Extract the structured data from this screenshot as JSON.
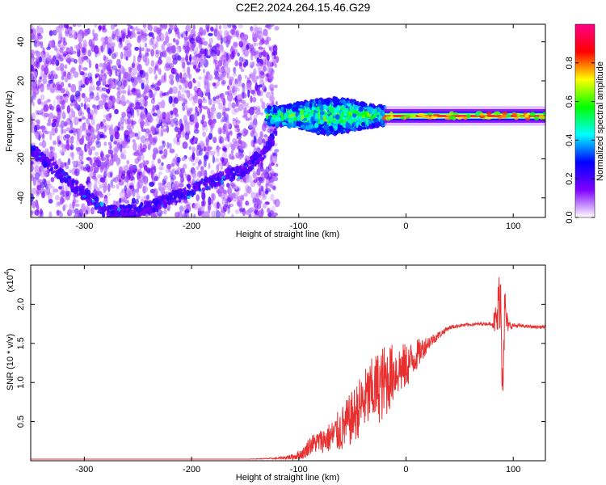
{
  "title": "C2E2.2024.264.15.46.G29",
  "chart_data": [
    {
      "type": "heatmap",
      "title": "C2E2.2024.264.15.46.G29",
      "xlabel": "Height of straight line (km)",
      "ylabel": "Frequency (Hz)",
      "xlim": [
        -350,
        130
      ],
      "ylim": [
        -50,
        49
      ],
      "xticks": [
        -300,
        -200,
        -100,
        0,
        100
      ],
      "yticks": [
        -40,
        -20,
        0,
        20,
        40
      ],
      "colorbar": {
        "label": "Normalized spectral amplitude",
        "range": [
          0,
          1
        ],
        "ticks": [
          "0.0",
          "0.2",
          "0.4",
          "0.6",
          "0.8"
        ],
        "colors": [
          "#ffffff",
          "#7f00ff",
          "#0000ff",
          "#00ffff",
          "#00ff00",
          "#ffff00",
          "#ff0000",
          "#ff0088"
        ]
      },
      "features": [
        {
          "name": "noise region",
          "x_range": [
            -350,
            -120
          ],
          "y_range": [
            -50,
            49
          ],
          "amplitude": 0.1
        },
        {
          "name": "descending arc",
          "points": [
            [
              -350,
              -15
            ],
            [
              -300,
              -38
            ],
            [
              -280,
              -47
            ],
            [
              -250,
              -47
            ],
            [
              -200,
              -36
            ],
            [
              -150,
              -25
            ],
            [
              -130,
              -15
            ],
            [
              -120,
              -5
            ]
          ],
          "amplitude": 0.2
        },
        {
          "name": "scatter band",
          "x_range": [
            -130,
            -20
          ],
          "center": 2,
          "amplitude": 0.45
        },
        {
          "name": "carrier line",
          "x_range": [
            -20,
            130
          ],
          "center": 2,
          "amplitude": 0.95
        }
      ]
    },
    {
      "type": "line",
      "title": "",
      "xlabel": "Height of straight line (km)",
      "ylabel": "SNR (10 * v/v)",
      "y_scale_label": "(x10",
      "y_scale_exp": "4",
      "xlim": [
        -350,
        130
      ],
      "ylim": [
        0,
        2.5
      ],
      "xticks": [
        -300,
        -200,
        -100,
        0,
        100
      ],
      "yticks": [
        0.5,
        1.0,
        1.5,
        2.0
      ],
      "ytick_labels": [
        "0.5",
        "1.0",
        "1.5",
        "2.0"
      ],
      "series": [
        {
          "name": "SNR",
          "color": "#e83030",
          "x": [
            -350,
            -300,
            -250,
            -200,
            -150,
            -120,
            -105,
            -95,
            -90,
            -80,
            -70,
            -60,
            -50,
            -40,
            -30,
            -20,
            -10,
            0,
            10,
            20,
            30,
            40,
            50,
            60,
            70,
            80,
            85,
            88,
            90,
            92,
            95,
            100,
            110,
            120,
            130
          ],
          "y": [
            0.02,
            0.02,
            0.02,
            0.02,
            0.02,
            0.03,
            0.05,
            0.1,
            0.2,
            0.25,
            0.3,
            0.4,
            0.55,
            0.75,
            0.9,
            1.0,
            1.15,
            1.2,
            1.35,
            1.5,
            1.6,
            1.7,
            1.73,
            1.74,
            1.75,
            1.75,
            1.8,
            2.2,
            1.1,
            1.9,
            1.72,
            1.73,
            1.72,
            1.71,
            1.71
          ],
          "noise": [
            0,
            0,
            0,
            0,
            0,
            0.01,
            0.04,
            0.08,
            0.12,
            0.15,
            0.2,
            0.3,
            0.35,
            0.4,
            0.45,
            0.5,
            0.35,
            0.3,
            0.2,
            0.1,
            0.05,
            0.03,
            0.02,
            0.02,
            0.02,
            0.02,
            0.3,
            0.5,
            0.5,
            0.4,
            0.08,
            0.03,
            0.02,
            0.02,
            0.02
          ]
        }
      ]
    }
  ]
}
